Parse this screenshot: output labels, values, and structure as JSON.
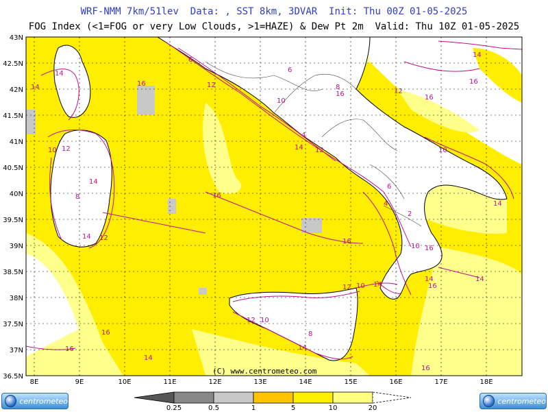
{
  "header": {
    "line1": "WRF-NMM 7km/51lev  Data: , SST 8km, 3DVAR  Init: Thu 00Z 01-05-2025",
    "line2": "FOG Index (<1=FOG or very Low Clouds, >1=HAZE) & Dew Pt 2m  Valid: Thu 10Z 01-05-2025"
  },
  "axes": {
    "lat_labels": [
      "43N",
      "42.5N",
      "42N",
      "41.5N",
      "41N",
      "40.5N",
      "40N",
      "39.5N",
      "39N",
      "38.5N",
      "38N",
      "37.5N",
      "37N",
      "36.5N"
    ],
    "lon_labels": [
      "8E",
      "9E",
      "10E",
      "11E",
      "12E",
      "13E",
      "14E",
      "15E",
      "16E",
      "17E",
      "18E"
    ]
  },
  "copyright": "(C) www.centrometeo.com",
  "contour_labels": [
    "14",
    "14",
    "16",
    "16",
    "16",
    "16",
    "16",
    "16",
    "14",
    "14",
    "12",
    "12",
    "10",
    "10",
    "8",
    "8",
    "6",
    "6",
    "4",
    "14",
    "14",
    "16",
    "16",
    "14",
    "14",
    "12",
    "12",
    "10",
    "10",
    "10",
    "12",
    "14",
    "14",
    "16",
    "14",
    "12",
    "16",
    "12",
    "10",
    "8",
    "6",
    "4",
    "2",
    "16",
    "14"
  ],
  "colorbar": {
    "labels": [
      "0.25",
      "0.5",
      "1",
      "5",
      "10",
      "20"
    ],
    "colors": {
      "very_dark": "#555555",
      "dark_gray": "#888888",
      "light_gray": "#c8c8c8",
      "orange": "#ffc400",
      "yellow": "#ffee00",
      "light_yellow": "#ffff80"
    }
  },
  "logo": {
    "left": "centrometeo",
    "right": "centrometeo"
  },
  "map": {
    "colors": {
      "sea_fill": "#ffee00",
      "pale": "#ffff8c",
      "white": "#ffffff",
      "gray": "#c8c8c8",
      "contour": "#c0108e",
      "coast": "#000000"
    }
  }
}
